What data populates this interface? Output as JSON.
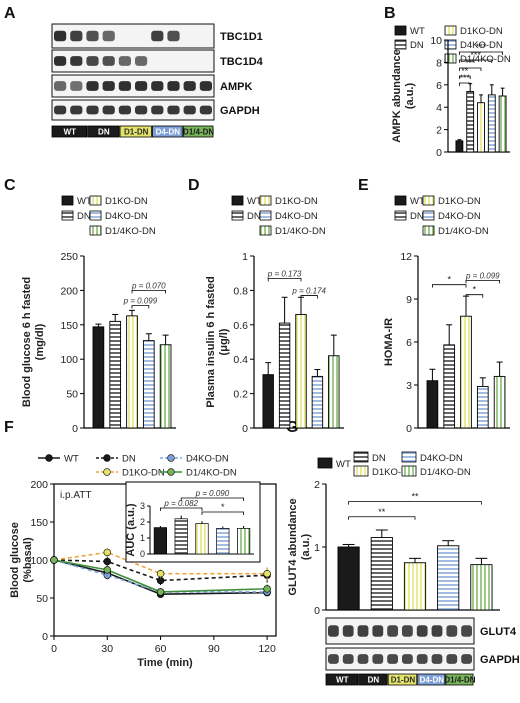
{
  "colors": {
    "wt": "#1a1a1a",
    "dn": "#262626",
    "d1ko": "#e3e36a",
    "d4ko": "#7d9fd6",
    "d14ko": "#77b35b",
    "d1ko_line": "#f2a33a",
    "d4ko_line": "#7ea6e0",
    "d14ko_line": "#3d8f3d"
  },
  "legend": {
    "wt": "WT",
    "dn": "DN",
    "d1ko": "D1KO-DN",
    "d4ko": "D4KO-DN",
    "d14ko": "D1/4KO-DN"
  },
  "panel_a": {
    "letter": "A",
    "band_labels": [
      "TBC1D1",
      "TBC1D4",
      "AMPK",
      "GAPDH"
    ],
    "group_labels": [
      "WT",
      "DN",
      "D1-DN",
      "D4-DN",
      "D1/4-DN"
    ]
  },
  "panel_g_blot": {
    "band_labels": [
      "GLUT4",
      "GAPDH"
    ],
    "group_labels": [
      "WT",
      "DN",
      "D1-DN",
      "D4-DN",
      "D1/4-DN"
    ]
  },
  "chart_data": [
    {
      "panel": "B",
      "type": "bar",
      "ylabel": "AMPK abundance\n(a.u.)",
      "ylim": [
        0,
        10
      ],
      "yticks": [
        0,
        2,
        4,
        6,
        8,
        10
      ],
      "categories": [
        "WT",
        "DN",
        "D1KO-DN",
        "D4KO-DN",
        "D1/4KO-DN"
      ],
      "values": [
        1.0,
        5.4,
        4.4,
        5.1,
        5.0
      ],
      "errors": [
        0.1,
        0.7,
        0.7,
        0.9,
        0.7
      ],
      "annotations": [
        "***",
        "***",
        "***",
        "**",
        "***"
      ]
    },
    {
      "panel": "C",
      "type": "bar",
      "ylabel": "Blood glucose 6 h fasted\n(mg/dl)",
      "ylim": [
        0,
        250
      ],
      "yticks": [
        0,
        50,
        100,
        150,
        200,
        250
      ],
      "categories": [
        "WT",
        "DN",
        "D1KO-DN",
        "D4KO-DN",
        "D1/4KO-DN"
      ],
      "values": [
        147,
        155,
        163,
        127,
        121
      ],
      "errors": [
        4,
        10,
        8,
        10,
        14
      ],
      "annotations": [
        "p = 0.099",
        "p = 0.070"
      ]
    },
    {
      "panel": "D",
      "type": "bar",
      "ylabel": "Plasma insulin 6 h fasted\n(μg/l)",
      "ylim": [
        0,
        1.0
      ],
      "yticks": [
        0,
        0.2,
        0.4,
        0.6,
        0.8,
        1.0
      ],
      "categories": [
        "WT",
        "DN",
        "D1KO-DN",
        "D4KO-DN",
        "D1/4KO-DN"
      ],
      "values": [
        0.31,
        0.61,
        0.66,
        0.3,
        0.42
      ],
      "errors": [
        0.07,
        0.15,
        0.1,
        0.04,
        0.12
      ],
      "annotations": [
        "p = 0.173",
        "p = 0.174"
      ]
    },
    {
      "panel": "E",
      "type": "bar",
      "ylabel": "HOMA-IR",
      "ylim": [
        0,
        12
      ],
      "yticks": [
        0,
        3,
        6,
        9,
        12
      ],
      "categories": [
        "WT",
        "DN",
        "D1KO-DN",
        "D4KO-DN",
        "D1/4KO-DN"
      ],
      "values": [
        3.3,
        5.8,
        7.8,
        2.9,
        3.6
      ],
      "errors": [
        0.8,
        1.4,
        1.4,
        0.6,
        1.0
      ],
      "annotations": [
        "*",
        "*",
        "p = 0.099"
      ]
    },
    {
      "panel": "F",
      "type": "line",
      "ylabel": "Blood glucose\n(%basal)",
      "xlabel": "Time (min)",
      "subtitle": "i.p.ATT",
      "xlim": [
        0,
        125
      ],
      "ylim": [
        0,
        200
      ],
      "xticks": [
        0,
        30,
        60,
        90,
        120
      ],
      "yticks": [
        0,
        50,
        100,
        150,
        200
      ],
      "x": [
        0,
        30,
        60,
        120
      ],
      "series": [
        {
          "name": "WT",
          "values": [
            100,
            83,
            55,
            57
          ],
          "errors": [
            2,
            6,
            4,
            5
          ]
        },
        {
          "name": "DN",
          "values": [
            100,
            98,
            73,
            80
          ],
          "errors": [
            2,
            7,
            6,
            10
          ]
        },
        {
          "name": "D1KO-DN",
          "values": [
            100,
            110,
            82,
            82
          ],
          "errors": [
            2,
            6,
            6,
            8
          ]
        },
        {
          "name": "D4KO-DN",
          "values": [
            100,
            80,
            58,
            58
          ],
          "errors": [
            2,
            6,
            5,
            6
          ]
        },
        {
          "name": "D1/4KO-DN",
          "values": [
            100,
            87,
            58,
            62
          ],
          "errors": [
            2,
            6,
            5,
            6
          ]
        }
      ],
      "inset": {
        "ylabel": "AUC (a.u.)",
        "ylim": [
          0,
          3
        ],
        "yticks": [
          0,
          1,
          2,
          3
        ],
        "values": [
          1.65,
          2.2,
          1.9,
          1.6,
          1.6
        ],
        "errors": [
          0.1,
          0.2,
          0.15,
          0.12,
          0.15
        ],
        "annotations": [
          "p = 0.082",
          "*",
          "p = 0.090"
        ]
      }
    },
    {
      "panel": "G",
      "type": "bar",
      "ylabel": "GLUT4 abundance\n(a.u.)",
      "ylim": [
        0,
        2
      ],
      "yticks": [
        0,
        1,
        2
      ],
      "categories": [
        "WT",
        "DN",
        "D1KO-DN",
        "D4KO-DN",
        "D1/4KO-DN"
      ],
      "values": [
        1.0,
        1.15,
        0.75,
        1.02,
        0.72
      ],
      "errors": [
        0.04,
        0.12,
        0.07,
        0.08,
        0.1
      ],
      "annotations": [
        "**",
        "**"
      ]
    }
  ]
}
